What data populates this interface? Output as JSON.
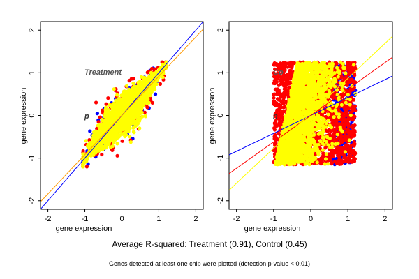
{
  "caption": "Average R-squared: Treatment (0.91), Control (0.45)",
  "note": "Genes detected at least one chip were plotted (detection p-value < 0.01)",
  "chart_data": [
    {
      "type": "scatter",
      "panel_label": "Treatment",
      "partial_label": "p",
      "xlabel": "gene expression",
      "ylabel": "gene expression",
      "xlim": [
        -2.2,
        2.2
      ],
      "ylim": [
        -2.2,
        2.2
      ],
      "xticks": [
        "-2",
        "-1",
        "0",
        "1",
        "2"
      ],
      "yticks": [
        "-2",
        "-1",
        "0",
        "1",
        "2"
      ],
      "grid": false,
      "cloud": {
        "center": [
          0.05,
          0.05
        ],
        "x_range": [
          -1.05,
          1.2
        ],
        "y_range": [
          -1.2,
          1.25
        ],
        "r_squared": 0.91
      },
      "series": [
        {
          "color": "#0000ff",
          "count": 140
        },
        {
          "color": "#ff0000",
          "count": 320
        },
        {
          "color": "#ffff00",
          "count": 2300
        }
      ],
      "fit_lines": [
        {
          "color": "#0000ff",
          "slope": 1.0,
          "intercept": 0.0
        },
        {
          "color": "#ff9900",
          "slope": 0.92,
          "intercept": 0.0
        }
      ]
    },
    {
      "type": "scatter",
      "panel_label": "Co",
      "partial_label": "n",
      "xlabel": "gene expression",
      "ylabel": "gene expression",
      "xlim": [
        -2.2,
        2.2
      ],
      "ylim": [
        -2.2,
        2.2
      ],
      "xticks": [
        "-2",
        "-1",
        "0",
        "1",
        "2"
      ],
      "yticks": [
        "-2",
        "-1",
        "0",
        "1",
        "2"
      ],
      "grid": false,
      "cloud": {
        "x_range": [
          -1.0,
          1.2
        ],
        "y_range": [
          -1.15,
          1.25
        ],
        "r_squared": 0.45
      },
      "series": [
        {
          "color": "#0000ff",
          "count": 260
        },
        {
          "color": "#ff0000",
          "count": 1700
        },
        {
          "color": "#ffff00",
          "count": 1900
        }
      ],
      "fit_lines": [
        {
          "color": "#0000ff",
          "slope": 0.42,
          "intercept": 0.0
        },
        {
          "color": "#ff0000",
          "slope": 0.62,
          "intercept": 0.0
        },
        {
          "color": "#ffff00",
          "slope": 0.82,
          "intercept": 0.05
        }
      ]
    }
  ]
}
